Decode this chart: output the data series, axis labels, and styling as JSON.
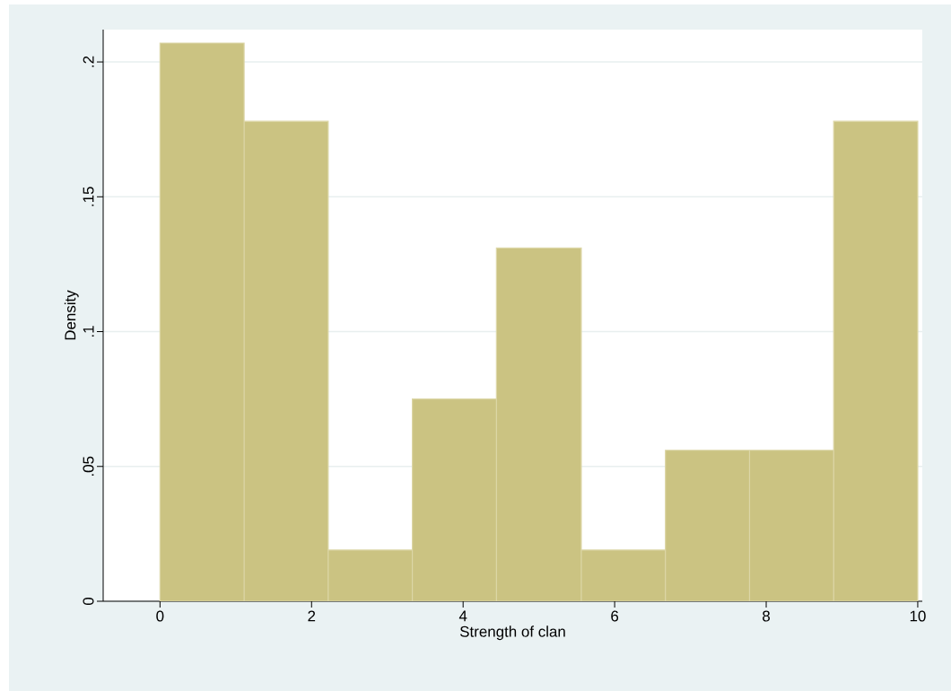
{
  "chart_data": {
    "type": "histogram",
    "xlabel": "Strength of clan",
    "ylabel": "Density",
    "bins": [
      0,
      1.11,
      2.22,
      3.33,
      4.44,
      5.56,
      6.67,
      7.78,
      8.89,
      10
    ],
    "values": [
      0.207,
      0.178,
      0.019,
      0.075,
      0.131,
      0.019,
      0.056,
      0.056,
      0.178
    ],
    "color": "#cbc382",
    "xlim": [
      -0.75,
      10.06
    ],
    "ylim": [
      0,
      0.212
    ],
    "xticks": [
      0,
      2,
      4,
      6,
      8,
      10
    ],
    "yticks": [
      0,
      {
        "value": 0.05,
        "label": ".05"
      },
      {
        "value": 0.1,
        "label": ".1"
      },
      {
        "value": 0.15,
        "label": ".15"
      },
      {
        "value": 0.2,
        "label": ".2"
      }
    ],
    "grid": "y"
  }
}
